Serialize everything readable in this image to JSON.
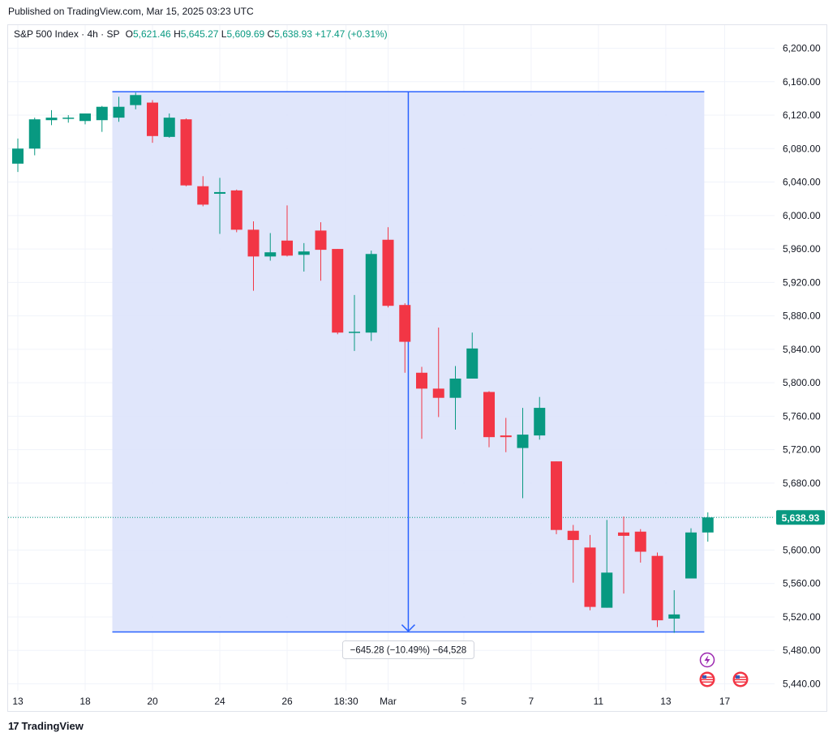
{
  "published": "Published on TradingView.com, Mar 15, 2025 03:23 UTC",
  "legend": {
    "symbol": "S&P 500 Index · 4h · SP",
    "open_label": "O",
    "open": "5,621.46",
    "high_label": "H",
    "high": "5,645.27",
    "low_label": "L",
    "low": "5,609.69",
    "close_label": "C",
    "close": "5,638.93",
    "change": "+17.47 (+0.31%)"
  },
  "footer": {
    "brand": "TradingView",
    "logo_mark": "17"
  },
  "colors": {
    "up": "#089981",
    "down": "#f23645",
    "range_fill": "#dde3fb",
    "range_line": "#2962ff",
    "price_tag": "#089981"
  },
  "icons": [
    "lightning-icon",
    "us-flag-icon",
    "us-flag-icon"
  ],
  "chart_data": {
    "type": "candlestick",
    "ylim": [
      5420,
      6220
    ],
    "y_ticks": [
      "6,200.00",
      "6,160.00",
      "6,120.00",
      "6,080.00",
      "6,040.00",
      "6,000.00",
      "5,960.00",
      "5,920.00",
      "5,880.00",
      "5,840.00",
      "5,800.00",
      "5,760.00",
      "5,720.00",
      "5,680.00",
      "5,640.00",
      "5,600.00",
      "5,560.00",
      "5,520.00",
      "5,480.00",
      "5,440.00"
    ],
    "y_tick_values": [
      6200,
      6160,
      6120,
      6080,
      6040,
      6000,
      5960,
      5920,
      5880,
      5840,
      5800,
      5760,
      5720,
      5680,
      5640,
      5600,
      5560,
      5520,
      5480,
      5440
    ],
    "x_ticks": [
      {
        "label": "13",
        "bar": 0
      },
      {
        "label": "18",
        "bar": 4
      },
      {
        "label": "20",
        "bar": 8
      },
      {
        "label": "24",
        "bar": 12
      },
      {
        "label": "26",
        "bar": 16
      },
      {
        "label": "18:30",
        "bar": 19.5
      },
      {
        "label": "Mar",
        "bar": 22
      },
      {
        "label": "5",
        "bar": 26.5
      },
      {
        "label": "7",
        "bar": 30.5
      },
      {
        "label": "11",
        "bar": 34.5
      },
      {
        "label": "13",
        "bar": 38.5
      },
      {
        "label": "17",
        "bar": 42
      }
    ],
    "candles": [
      [
        6062,
        6092,
        6052,
        6080
      ],
      [
        6080,
        6117,
        6072,
        6115
      ],
      [
        6114,
        6126,
        6108,
        6117
      ],
      [
        6116,
        6120,
        6111,
        6117
      ],
      [
        6113,
        6122,
        6109,
        6122
      ],
      [
        6114,
        6131,
        6100,
        6130
      ],
      [
        6117,
        6142,
        6112,
        6130
      ],
      [
        6132,
        6147,
        6127,
        6144
      ],
      [
        6135,
        6138,
        6087,
        6095
      ],
      [
        6094,
        6122,
        6093,
        6117
      ],
      [
        6115,
        6116,
        6035,
        6036
      ],
      [
        6035,
        6047,
        6011,
        6013
      ],
      [
        6026,
        6045,
        5978,
        6028
      ],
      [
        6030,
        6031,
        5980,
        5983
      ],
      [
        5983,
        5993,
        5910,
        5951
      ],
      [
        5951,
        5979,
        5946,
        5956
      ],
      [
        5970,
        6012,
        5951,
        5952
      ],
      [
        5953,
        5967,
        5933,
        5957
      ],
      [
        5982,
        5992,
        5922,
        5959
      ],
      [
        5960,
        5960,
        5858,
        5860
      ],
      [
        5861,
        5905,
        5838,
        5861
      ],
      [
        5860,
        5958,
        5850,
        5954
      ],
      [
        5971,
        5986,
        5890,
        5892
      ],
      [
        5893,
        5895,
        5812,
        5849
      ],
      [
        5812,
        5819,
        5733,
        5793
      ],
      [
        5793,
        5866,
        5759,
        5782
      ],
      [
        5782,
        5820,
        5744,
        5805
      ],
      [
        5805,
        5860,
        5805,
        5841
      ],
      [
        5789,
        5790,
        5723,
        5735
      ],
      [
        5737,
        5758,
        5717,
        5735
      ],
      [
        5722,
        5770,
        5662,
        5738
      ],
      [
        5737,
        5783,
        5732,
        5770
      ],
      [
        5706,
        5706,
        5619,
        5624
      ],
      [
        5623,
        5630,
        5561,
        5612
      ],
      [
        5603,
        5618,
        5528,
        5532
      ],
      [
        5531,
        5636,
        5531,
        5573
      ],
      [
        5621,
        5640,
        5548,
        5617
      ],
      [
        5622,
        5625,
        5585,
        5598
      ],
      [
        5593,
        5597,
        5508,
        5516
      ],
      [
        5518,
        5552,
        5501,
        5523
      ],
      [
        5566,
        5626,
        5566,
        5621
      ],
      [
        5621,
        5645,
        5610,
        5639
      ]
    ],
    "range_measurement": {
      "start_bar": 6,
      "end_bar": 40.5,
      "high": 6148,
      "low": 5502,
      "label": "−645.28 (−10.49%) −64,528"
    },
    "last_price": 5638.93,
    "last_price_label": "5,638.93"
  }
}
